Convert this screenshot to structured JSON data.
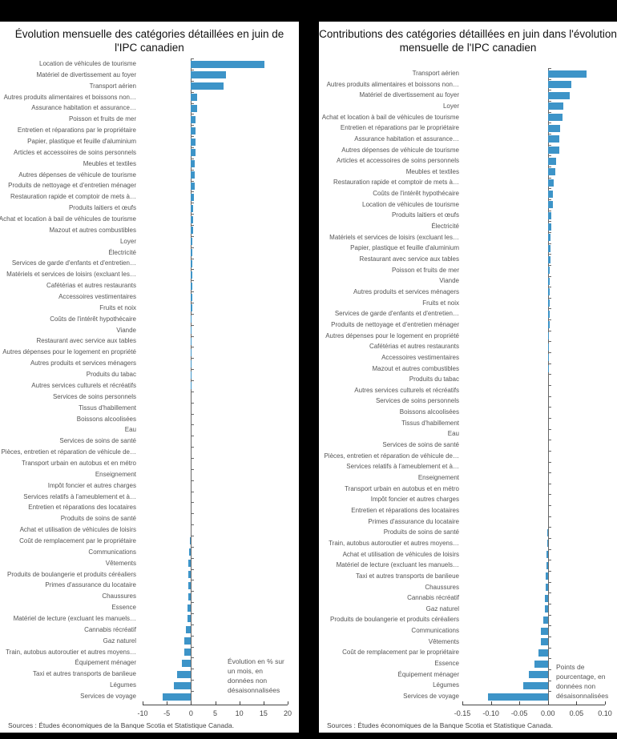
{
  "chart_data": [
    {
      "type": "bar",
      "orientation": "horizontal",
      "title": "Évolution mensuelle des catégories détaillées en juin de l'IPC canadien",
      "xlabel": "",
      "ylabel": "",
      "xlim": [
        -10,
        20
      ],
      "xticks": [
        -10,
        -5,
        0,
        5,
        10,
        15,
        20
      ],
      "xtick_labels": [
        "-10",
        "-5",
        "0",
        "5",
        "10",
        "15",
        "20"
      ],
      "grid": false,
      "annotation": "Évolution en % sur un mois, en données non désaisonnalisées",
      "color": "#3d94c8",
      "categories": [
        "Location de véhicules de tourisme",
        "Matériel de divertissement au foyer",
        "Transport aérien",
        "Autres produits alimentaires et boissons non…",
        "Assurance habitation et assurance…",
        "Poisson et fruits de mer",
        "Entretien et réparations par le propriétaire",
        "Papier, plastique et feuille d'aluminium",
        "Articles et accessoires de soins personnels",
        "Meubles et textiles",
        "Autres dépenses de véhicule de tourisme",
        "Produits de nettoyage et d'entretien ménager",
        "Restauration rapide et comptoir de mets à…",
        "Produits laitiers et œufs",
        "Achat et location à bail de véhicules de tourisme",
        "Mazout et autres combustibles",
        "Loyer",
        "Électricité",
        "Services de garde d'enfants et d'entretien…",
        "Matériels et services de loisirs (excluant les…",
        "Cafétérias et autres restaurants",
        "Accessoires vestimentaires",
        "Fruits et noix",
        "Coûts de l'intérêt hypothécaire",
        "Viande",
        "Restaurant avec service aux tables",
        "Autres dépenses pour le logement en propriété",
        "Autres produits et services ménagers",
        "Produits du tabac",
        "Autres services culturels et récréatifs",
        "Services de soins personnels",
        "Tissus d'habillement",
        "Boissons alcoolisées",
        "Eau",
        "Services de soins de santé",
        "Pièces, entretien et réparation de véhicule de…",
        "Transport urbain en autobus et en métro",
        "Enseignement",
        "Impôt foncier et autres charges",
        "Services relatifs à l'ameublement et à…",
        "Entretien et réparations des locataires",
        "Produits de soins de santé",
        "Achat et utilisation de véhicules de loisirs",
        "Coût de remplacement par le propriétaire",
        "Communications",
        "Vêtements",
        "Produits de boulangerie et produits céréaliers",
        "Primes d'assurance du locataire",
        "Chaussures",
        "Essence",
        "Matériel de lecture (excluant les manuels…",
        "Cannabis récréatif",
        "Gaz naturel",
        "Train, autobus autoroutier et autres moyens…",
        "Équipement ménager",
        "Taxi et autres transports de banlieue",
        "Légumes",
        "Services de voyage"
      ],
      "values": [
        15.2,
        7.2,
        6.8,
        1.3,
        1.3,
        1.0,
        1.0,
        0.9,
        0.9,
        0.8,
        0.8,
        0.7,
        0.6,
        0.4,
        0.4,
        0.4,
        0.3,
        0.3,
        0.3,
        0.25,
        0.2,
        0.2,
        0.2,
        0.15,
        0.15,
        0.1,
        0.1,
        0.05,
        0.05,
        0.05,
        0.0,
        0.0,
        0.0,
        0.0,
        0.0,
        0.0,
        0.0,
        0.0,
        0.0,
        0.0,
        0.0,
        0.0,
        0.0,
        -0.3,
        -0.4,
        -0.5,
        -0.5,
        -0.6,
        -0.6,
        -0.7,
        -0.8,
        -1.0,
        -1.3,
        -1.4,
        -1.8,
        -2.8,
        -3.5,
        -5.8
      ]
    },
    {
      "type": "bar",
      "orientation": "horizontal",
      "title": "Contributions des catégories détaillées en juin dans l'évolution mensuelle de l'IPC canadien",
      "xlabel": "",
      "ylabel": "",
      "xlim": [
        -0.15,
        0.1
      ],
      "xticks": [
        -0.15,
        -0.1,
        -0.05,
        0.0,
        0.05,
        0.1
      ],
      "xtick_labels": [
        "-0.15",
        "-0.10",
        "-0.05",
        "0.00",
        "0.05",
        "0.10"
      ],
      "grid": false,
      "annotation": "Points de pourcentage, en données non désaisonnalisées",
      "color": "#3d94c8",
      "categories": [
        "Transport aérien",
        "Autres produits alimentaires et boissons non…",
        "Matériel de divertissement au foyer",
        "Loyer",
        "Achat et location à bail de véhicules de tourisme",
        "Entretien et réparations par le propriétaire",
        "Assurance habitation et assurance…",
        "Autres dépenses de véhicule de tourisme",
        "Articles et accessoires de soins personnels",
        "Meubles et textiles",
        "Restauration rapide et comptoir de mets à…",
        "Coûts de l'intérêt hypothécaire",
        "Location de véhicules de tourisme",
        "Produits laitiers et œufs",
        "Électricité",
        "Matériels et services de loisirs (excluant les…",
        "Papier, plastique et feuille d'aluminium",
        "Restaurant avec service aux tables",
        "Poisson et fruits de mer",
        "Viande",
        "Autres produits et services ménagers",
        "Fruits et noix",
        "Services de garde d'enfants et d'entretien…",
        "Produits de nettoyage et d'entretien ménager",
        "Autres dépenses pour le logement en propriété",
        "Cafétérias et autres restaurants",
        "Accessoires vestimentaires",
        "Mazout et autres combustibles",
        "Produits du tabac",
        "Autres services culturels et récréatifs",
        "Services de soins personnels",
        "Boissons alcoolisées",
        "Tissus d'habillement",
        "Eau",
        "Services de soins de santé",
        "Pièces, entretien et réparation de véhicule de…",
        "Services relatifs à l'ameublement et à…",
        "Enseignement",
        "Transport urbain en autobus et en métro",
        "Impôt foncier et autres charges",
        "Entretien et réparations des locataires",
        "Primes d'assurance du locataire",
        "Produits de soins de santé",
        "Train, autobus autoroutier et autres moyens…",
        "Achat et utilisation de véhicules de loisirs",
        "Matériel de lecture (excluant les manuels…",
        "Taxi et autres transports de banlieue",
        "Chaussures",
        "Cannabis récréatif",
        "Gaz naturel",
        "Produits de boulangerie et produits céréaliers",
        "Communications",
        "Vêtements",
        "Coût de remplacement par le propriétaire",
        "Essence",
        "Équipement ménager",
        "Légumes",
        "Services de voyage"
      ],
      "values": [
        0.067,
        0.041,
        0.038,
        0.027,
        0.026,
        0.021,
        0.02,
        0.02,
        0.014,
        0.013,
        0.01,
        0.009,
        0.009,
        0.006,
        0.006,
        0.005,
        0.004,
        0.004,
        0.003,
        0.003,
        0.003,
        0.003,
        0.003,
        0.003,
        0.002,
        0.002,
        0.001,
        0.001,
        0.0,
        0.0,
        0.0,
        0.0,
        0.0,
        0.0,
        0.0,
        0.0,
        0.0,
        0.0,
        0.0,
        0.0,
        0.0,
        0.0,
        -0.001,
        -0.001,
        -0.002,
        -0.002,
        -0.004,
        -0.004,
        -0.005,
        -0.006,
        -0.008,
        -0.012,
        -0.013,
        -0.016,
        -0.023,
        -0.034,
        -0.043,
        -0.105
      ]
    }
  ],
  "left": {
    "title_line1": "Évolution mensuelle des catégories détaillées en juin de",
    "title_line2": "l'IPC canadien",
    "note": [
      "Évolution en % sur",
      "un mois, en",
      "données non",
      "désaisonnalisées"
    ],
    "source": "Sources : Études économiques de la Banque Scotia et Statistique Canada."
  },
  "right": {
    "title_line1": "Contributions des catégories détaillées en juin dans l'évolution",
    "title_line2": "mensuelle de l'IPC canadien",
    "note": [
      "Points de",
      "pourcentage, en",
      "données non",
      "désaisonnalisées"
    ],
    "source": "Sources : Études économiques de la Banque Scotia et Statistique Canada."
  }
}
